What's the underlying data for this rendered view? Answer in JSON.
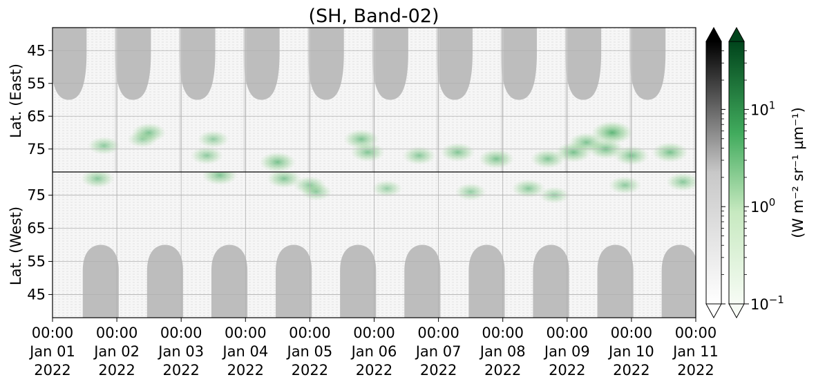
{
  "chart_data": {
    "type": "heatmap",
    "title": "(SH, Band-02)",
    "panels": [
      {
        "name": "east",
        "ylabel": "Lat. (East)",
        "yticks": [
          45,
          55,
          65,
          75
        ],
        "ylim": [
          38,
          82
        ]
      },
      {
        "name": "west",
        "ylabel": "Lat. (West)",
        "yticks": [
          75,
          65,
          55,
          45
        ],
        "ylim": [
          82,
          38
        ]
      }
    ],
    "x_ticks": [
      {
        "time": "00:00",
        "date": "Jan 01",
        "year": "2022"
      },
      {
        "time": "00:00",
        "date": "Jan 02",
        "year": "2022"
      },
      {
        "time": "00:00",
        "date": "Jan 03",
        "year": "2022"
      },
      {
        "time": "00:00",
        "date": "Jan 04",
        "year": "2022"
      },
      {
        "time": "00:00",
        "date": "Jan 05",
        "year": "2022"
      },
      {
        "time": "00:00",
        "date": "Jan 06",
        "year": "2022"
      },
      {
        "time": "00:00",
        "date": "Jan 07",
        "year": "2022"
      },
      {
        "time": "00:00",
        "date": "Jan 08",
        "year": "2022"
      },
      {
        "time": "00:00",
        "date": "Jan 09",
        "year": "2022"
      },
      {
        "time": "00:00",
        "date": "Jan 10",
        "year": "2022"
      },
      {
        "time": "00:00",
        "date": "Jan 11",
        "year": "2022"
      }
    ],
    "xlim": [
      "2022-01-01 00:00",
      "2022-01-11 00:00"
    ],
    "grid": true,
    "colorbars": [
      {
        "name": "grey",
        "colors": [
          "#ffffff",
          "#000000"
        ],
        "extend": "both"
      },
      {
        "name": "green",
        "colors": [
          "#f7fcf5",
          "#00441b"
        ],
        "extend": "both",
        "scale": "log",
        "range": [
          0.1,
          50
        ],
        "ticks": [
          {
            "base": "10",
            "exp": "1"
          },
          {
            "base": "10",
            "exp": "0"
          },
          {
            "base": "10",
            "exp": "−1"
          }
        ]
      }
    ],
    "colorbar_label": "(W m⁻² sr⁻¹ µm⁻¹)",
    "daylight_blocks": {
      "color": "#bdbdbd",
      "east_center_days": [
        0.25,
        1.25,
        2.25,
        3.25,
        4.25,
        5.25,
        6.25,
        7.25,
        8.25,
        9.25
      ],
      "west_center_days": [
        0.75,
        1.75,
        2.75,
        3.75,
        4.75,
        5.75,
        6.75,
        7.75,
        8.75,
        9.75
      ],
      "lat_limit": 60
    },
    "green_emission_clusters": [
      {
        "day": 0.8,
        "lat": 74,
        "panel": "east",
        "level": 0.4
      },
      {
        "day": 1.4,
        "lat": 72,
        "panel": "east",
        "level": 0.3
      },
      {
        "day": 1.5,
        "lat": 70,
        "panel": "east",
        "level": 0.5
      },
      {
        "day": 2.4,
        "lat": 77,
        "panel": "east",
        "level": 0.4
      },
      {
        "day": 2.5,
        "lat": 72,
        "panel": "east",
        "level": 0.35
      },
      {
        "day": 3.5,
        "lat": 79,
        "panel": "east",
        "level": 0.6
      },
      {
        "day": 4.8,
        "lat": 72,
        "panel": "east",
        "level": 0.55
      },
      {
        "day": 4.9,
        "lat": 76,
        "panel": "east",
        "level": 0.5
      },
      {
        "day": 5.7,
        "lat": 77,
        "panel": "east",
        "level": 0.45
      },
      {
        "day": 6.3,
        "lat": 76,
        "panel": "east",
        "level": 0.5
      },
      {
        "day": 6.9,
        "lat": 78,
        "panel": "east",
        "level": 0.55
      },
      {
        "day": 7.7,
        "lat": 78,
        "panel": "east",
        "level": 0.5
      },
      {
        "day": 8.1,
        "lat": 76,
        "panel": "east",
        "level": 0.6
      },
      {
        "day": 8.3,
        "lat": 73,
        "panel": "east",
        "level": 0.55
      },
      {
        "day": 8.7,
        "lat": 70,
        "panel": "east",
        "level": 0.85
      },
      {
        "day": 8.6,
        "lat": 75,
        "panel": "east",
        "level": 0.6
      },
      {
        "day": 9.0,
        "lat": 77,
        "panel": "east",
        "level": 0.55
      },
      {
        "day": 9.6,
        "lat": 76,
        "panel": "east",
        "level": 0.6
      },
      {
        "day": 0.7,
        "lat": 80,
        "panel": "west",
        "level": 0.45
      },
      {
        "day": 2.6,
        "lat": 81,
        "panel": "west",
        "level": 0.55
      },
      {
        "day": 3.6,
        "lat": 80,
        "panel": "west",
        "level": 0.5
      },
      {
        "day": 4.0,
        "lat": 78,
        "panel": "west",
        "level": 0.4
      },
      {
        "day": 4.1,
        "lat": 76,
        "panel": "west",
        "level": 0.35
      },
      {
        "day": 5.2,
        "lat": 77,
        "panel": "west",
        "level": 0.3
      },
      {
        "day": 6.5,
        "lat": 76,
        "panel": "west",
        "level": 0.35
      },
      {
        "day": 7.4,
        "lat": 77,
        "panel": "west",
        "level": 0.45
      },
      {
        "day": 7.8,
        "lat": 75,
        "panel": "west",
        "level": 0.3
      },
      {
        "day": 8.9,
        "lat": 78,
        "panel": "west",
        "level": 0.4
      },
      {
        "day": 9.8,
        "lat": 79,
        "panel": "west",
        "level": 0.45
      }
    ]
  }
}
